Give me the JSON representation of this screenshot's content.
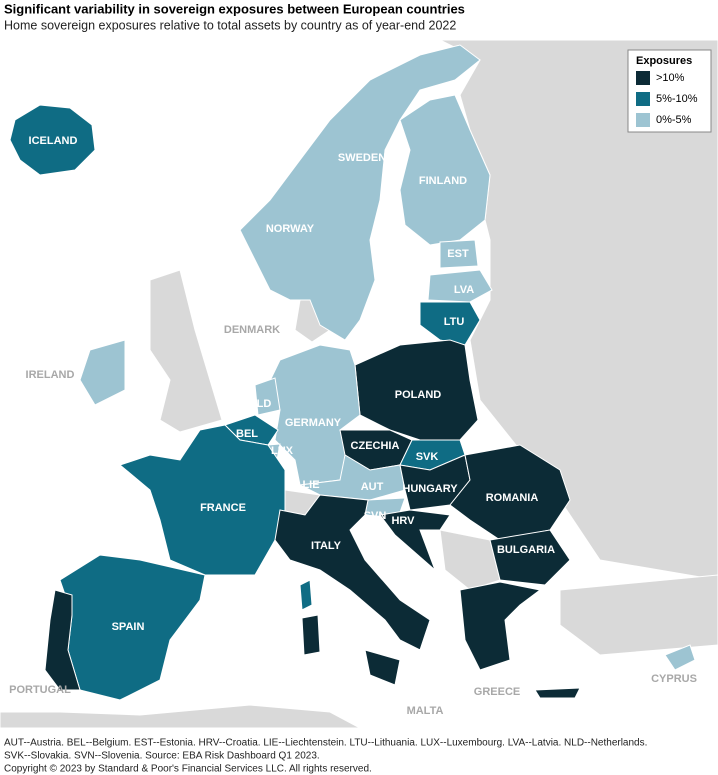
{
  "header": {
    "title": "Significant variability in sovereign exposures between European countries",
    "subtitle": "Home sovereign exposures relative to total assets by country as of year-end 2022"
  },
  "legend": {
    "title": "Exposures",
    "items": [
      {
        "label": ">10%",
        "color": "#0c2b36"
      },
      {
        "label": "5%-10%",
        "color": "#0f6c84"
      },
      {
        "label": "0%-5%",
        "color": "#9dc4d2"
      }
    ]
  },
  "labels": [
    "ICELAND",
    "SWEDEN",
    "FINLAND",
    "NORWAY",
    "EST",
    "LVA",
    "LTU",
    "DENMARK",
    "IRELAND",
    "POLAND",
    "NLD",
    "GERMANY",
    "BEL",
    "LUX",
    "CZECHIA",
    "SVK",
    "FRANCE",
    "LIE",
    "AUT",
    "HUNGARY",
    "ROMANIA",
    "SVN",
    "HRV",
    "ITALY",
    "BULGARIA",
    "SPAIN",
    "PORTUGAL",
    "GREECE",
    "MALTA",
    "CYPRUS"
  ],
  "footnote": [
    "AUT--Austria. BEL--Belgium. EST--Estonia. HRV--Croatia. LIE--Liechtenstein. LTU--Lithuania. LUX--Luxembourg. LVA--Latvia. NLD--Netherlands.",
    "SVK--Slovakia. SVN--Slovenia. Source: EBA Risk Dashboard Q1 2023."
  ],
  "copyright": "Copyright © 2023 by Standard & Poor's Financial Services LLC. All rights reserved."
}
